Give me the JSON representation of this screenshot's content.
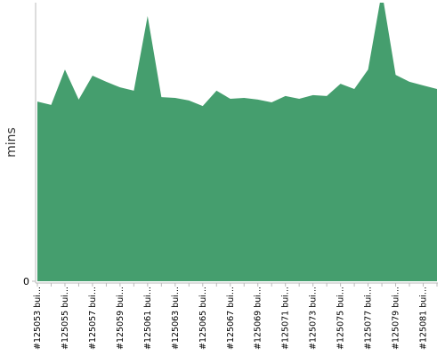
{
  "chart_data": {
    "type": "area",
    "y_label": "mins",
    "categories": [
      "#125053 bui...",
      null,
      "#125055 bui...",
      null,
      "#125057 bui...",
      null,
      "#125059 bui...",
      null,
      "#125061 bui...",
      null,
      "#125063 bui...",
      null,
      "#125065 bui...",
      null,
      "#125067 bui...",
      null,
      "#125069 bui...",
      null,
      "#125071 bui...",
      null,
      "#125073 bui...",
      null,
      "#125075 bui...",
      null,
      "#125077 bui...",
      null,
      "#125079 bui...",
      null,
      "#125081 bui...",
      null
    ],
    "values": [
      64.5,
      63.3,
      76.0,
      65.2,
      73.8,
      71.6,
      69.6,
      68.4,
      95.2,
      66.1,
      65.8,
      64.9,
      62.9,
      68.4,
      65.5,
      65.8,
      65.2,
      64.2,
      66.5,
      65.5,
      66.8,
      66.5,
      70.9,
      69.0,
      76.0,
      104,
      74.1,
      71.6,
      70.3,
      69.0
    ],
    "color": "#459e6e",
    "ylim": [
      0,
      100
    ],
    "yticks": [
      0
    ]
  }
}
